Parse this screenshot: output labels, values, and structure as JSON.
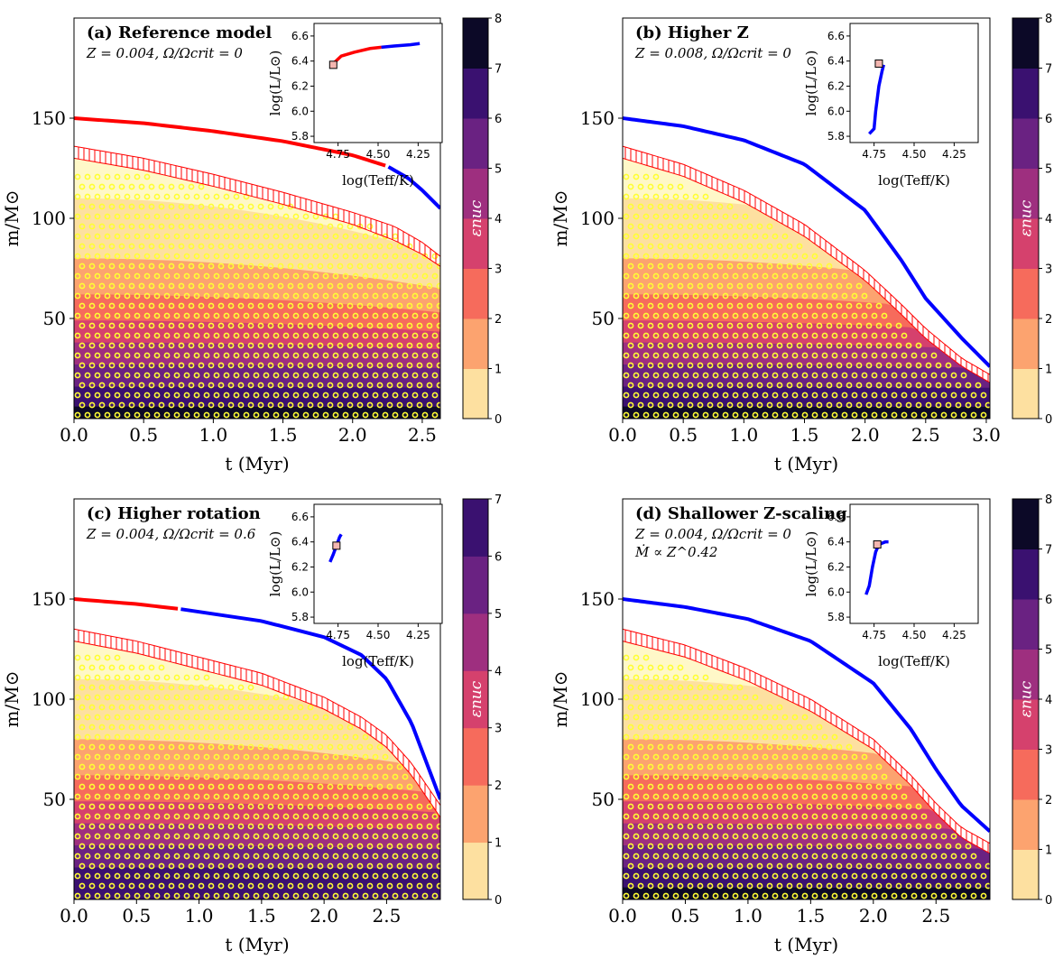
{
  "colors": {
    "radiative_wind": "#ff0000",
    "ce_wind": "#0000ff",
    "hatch": "#ff0000",
    "dots": "#ffff33",
    "marker_fill": "#f4b6b0",
    "cmap": [
      "#fde0a0",
      "#fca36f",
      "#f66b5c",
      "#d5416d",
      "#9e2f7f",
      "#6a2282",
      "#3a1170",
      "#0c0927"
    ]
  },
  "chart_data": [
    {
      "type": "kippenhahn",
      "panel": "a",
      "title": "(a) Reference model",
      "subtitle": "Z = 0.004, Ω/Ωcrit = 0",
      "subtitle2": "",
      "xlabel": "t (Myr)",
      "ylabel": "m/M⊙",
      "xlim": [
        0,
        2.63
      ],
      "ylim": [
        0,
        200
      ],
      "xticks": [
        "0.0",
        "0.5",
        "1.0",
        "1.5",
        "2.0",
        "2.5"
      ],
      "yticks": [
        "50",
        "100",
        "150"
      ],
      "mass_curve": [
        [
          0,
          150
        ],
        [
          0.5,
          147.5
        ],
        [
          1.0,
          143.5
        ],
        [
          1.5,
          138.5
        ],
        [
          2.0,
          131.5
        ],
        [
          2.25,
          126
        ],
        [
          2.4,
          120
        ],
        [
          2.5,
          114
        ],
        [
          2.63,
          105
        ]
      ],
      "red_until": 2.25,
      "hatch_top": [
        [
          0,
          136
        ],
        [
          0.5,
          130
        ],
        [
          1.0,
          122
        ],
        [
          1.5,
          113
        ],
        [
          2.0,
          103
        ],
        [
          2.3,
          96
        ],
        [
          2.5,
          88
        ],
        [
          2.63,
          81
        ]
      ],
      "hatch_bottom": [
        [
          0,
          130
        ],
        [
          0.5,
          124
        ],
        [
          1.0,
          116
        ],
        [
          1.5,
          107
        ],
        [
          2.0,
          97
        ],
        [
          2.3,
          89
        ],
        [
          2.5,
          82
        ],
        [
          2.63,
          76
        ]
      ],
      "dot_top": [
        [
          0,
          126
        ],
        [
          0.6,
          120
        ],
        [
          1.2,
          112
        ],
        [
          1.8,
          103
        ],
        [
          2.3,
          93
        ],
        [
          2.63,
          80
        ]
      ],
      "contours": [
        [
          0,
          110
        ],
        [
          0,
          80
        ],
        [
          0,
          62
        ],
        [
          0,
          49
        ],
        [
          0,
          38
        ],
        [
          0,
          27
        ],
        [
          0,
          16
        ],
        [
          0,
          6
        ]
      ],
      "colorbar": {
        "label": "εnuc",
        "ticks": [
          "0",
          "1",
          "2",
          "3",
          "4",
          "5",
          "6",
          "7",
          "8"
        ]
      },
      "inset": {
        "xlabel": "log(Teff/K)",
        "ylabel": "log(L/L⊙)",
        "xticks": [
          "4.75",
          "4.50",
          "4.25"
        ],
        "yticks": [
          "5.8",
          "6.0",
          "6.2",
          "6.4",
          "6.6"
        ],
        "xlim": [
          4.9,
          4.1
        ],
        "ylim": [
          5.75,
          6.7
        ],
        "red_track": [
          [
            4.78,
            6.38
          ],
          [
            4.73,
            6.44
          ],
          [
            4.65,
            6.47
          ],
          [
            4.55,
            6.5
          ],
          [
            4.48,
            6.51
          ]
        ],
        "blue_track": [
          [
            4.48,
            6.51
          ],
          [
            4.4,
            6.52
          ],
          [
            4.3,
            6.53
          ],
          [
            4.24,
            6.54
          ]
        ],
        "start": [
          4.78,
          6.37
        ]
      }
    },
    {
      "type": "kippenhahn",
      "panel": "b",
      "title": "(b) Higher Z",
      "subtitle": "Z = 0.008, Ω/Ωcrit = 0",
      "subtitle2": "",
      "xlabel": "t (Myr)",
      "ylabel": "m/M⊙",
      "xlim": [
        0,
        3.03
      ],
      "ylim": [
        0,
        200
      ],
      "xticks": [
        "0.0",
        "0.5",
        "1.0",
        "1.5",
        "2.0",
        "2.5",
        "3.0"
      ],
      "yticks": [
        "50",
        "100",
        "150"
      ],
      "mass_curve": [
        [
          0,
          150
        ],
        [
          0.5,
          146
        ],
        [
          1.0,
          139
        ],
        [
          1.5,
          127
        ],
        [
          2.0,
          104
        ],
        [
          2.3,
          79
        ],
        [
          2.5,
          60
        ],
        [
          2.8,
          40
        ],
        [
          3.03,
          26
        ]
      ],
      "red_until": 0,
      "hatch_top": [
        [
          0,
          136
        ],
        [
          0.5,
          127
        ],
        [
          1.0,
          114
        ],
        [
          1.5,
          97
        ],
        [
          2.0,
          74
        ],
        [
          2.3,
          57
        ],
        [
          2.5,
          45
        ],
        [
          2.8,
          30
        ],
        [
          3.03,
          22
        ]
      ],
      "hatch_bottom": [
        [
          0,
          130
        ],
        [
          0.5,
          121
        ],
        [
          1.0,
          108
        ],
        [
          1.5,
          91
        ],
        [
          2.0,
          69
        ],
        [
          2.3,
          52
        ],
        [
          2.5,
          40
        ],
        [
          2.8,
          26
        ],
        [
          3.03,
          18
        ]
      ],
      "dot_top": [
        [
          0,
          126
        ],
        [
          0.5,
          117
        ],
        [
          1.0,
          104
        ],
        [
          1.5,
          87
        ],
        [
          2.0,
          64
        ],
        [
          2.5,
          36
        ],
        [
          3.03,
          14
        ]
      ],
      "contours": [
        [
          0,
          110
        ],
        [
          0,
          80
        ],
        [
          0,
          62
        ],
        [
          0,
          49
        ],
        [
          0,
          38
        ],
        [
          0,
          27
        ],
        [
          0,
          16
        ],
        [
          0,
          6
        ]
      ],
      "colorbar": {
        "label": "εnuc",
        "ticks": [
          "0",
          "1",
          "2",
          "3",
          "4",
          "5",
          "6",
          "7",
          "8"
        ]
      },
      "inset": {
        "xlabel": "log(Teff/K)",
        "ylabel": "log(L/L⊙)",
        "xticks": [
          "4.75",
          "4.50",
          "4.25"
        ],
        "yticks": [
          "5.8",
          "6.0",
          "6.2",
          "6.4",
          "6.6"
        ],
        "xlim": [
          4.9,
          4.1
        ],
        "ylim": [
          5.75,
          6.7
        ],
        "red_track": [],
        "blue_track": [
          [
            4.78,
            5.82
          ],
          [
            4.75,
            5.86
          ],
          [
            4.74,
            6.0
          ],
          [
            4.72,
            6.2
          ],
          [
            4.7,
            6.32
          ],
          [
            4.69,
            6.37
          ]
        ],
        "start": [
          4.72,
          6.38
        ]
      }
    },
    {
      "type": "kippenhahn",
      "panel": "c",
      "title": "(c) Higher rotation",
      "subtitle": "Z = 0.004, Ω/Ωcrit = 0.6",
      "subtitle2": "",
      "xlabel": "t (Myr)",
      "ylabel": "m/M⊙",
      "xlim": [
        0,
        2.93
      ],
      "ylim": [
        0,
        200
      ],
      "xticks": [
        "0.0",
        "0.5",
        "1.0",
        "1.5",
        "2.0",
        "2.5"
      ],
      "yticks": [
        "50",
        "100",
        "150"
      ],
      "mass_curve": [
        [
          0,
          150
        ],
        [
          0.5,
          147.5
        ],
        [
          0.85,
          145
        ],
        [
          1.5,
          139
        ],
        [
          2.0,
          131
        ],
        [
          2.3,
          122
        ],
        [
          2.5,
          110
        ],
        [
          2.7,
          88
        ],
        [
          2.93,
          50
        ]
      ],
      "red_until": 0.85,
      "hatch_top": [
        [
          0,
          135
        ],
        [
          0.5,
          129
        ],
        [
          1.0,
          121
        ],
        [
          1.5,
          113
        ],
        [
          2.0,
          101
        ],
        [
          2.3,
          91
        ],
        [
          2.5,
          82
        ],
        [
          2.7,
          68
        ],
        [
          2.93,
          47
        ]
      ],
      "hatch_bottom": [
        [
          0,
          129
        ],
        [
          0.5,
          123
        ],
        [
          1.0,
          115
        ],
        [
          1.5,
          107
        ],
        [
          2.0,
          95
        ],
        [
          2.3,
          85
        ],
        [
          2.5,
          76
        ],
        [
          2.7,
          62
        ],
        [
          2.93,
          41
        ]
      ],
      "dot_top": [
        [
          0,
          125
        ],
        [
          0.6,
          118
        ],
        [
          1.2,
          110
        ],
        [
          1.8,
          99
        ],
        [
          2.3,
          85
        ],
        [
          2.7,
          62
        ],
        [
          2.93,
          37
        ]
      ],
      "contours": [
        [
          0,
          110
        ],
        [
          0,
          80
        ],
        [
          0,
          62
        ],
        [
          0,
          49
        ],
        [
          0,
          38
        ],
        [
          0,
          27
        ],
        [
          0,
          16
        ]
      ],
      "colorbar": {
        "label": "εnuc",
        "ticks": [
          "0",
          "1",
          "2",
          "3",
          "4",
          "5",
          "6",
          "7"
        ]
      },
      "inset": {
        "xlabel": "log(Teff/K)",
        "ylabel": "log(L/L⊙)",
        "xticks": [
          "4.75",
          "4.50",
          "4.25"
        ],
        "yticks": [
          "5.8",
          "6.0",
          "6.2",
          "6.4",
          "6.6"
        ],
        "xlim": [
          4.9,
          4.1
        ],
        "ylim": [
          5.75,
          6.7
        ],
        "red_track": [],
        "blue_track": [
          [
            4.8,
            6.24
          ],
          [
            4.78,
            6.3
          ],
          [
            4.76,
            6.37
          ],
          [
            4.74,
            6.44
          ],
          [
            4.73,
            6.46
          ]
        ],
        "start": [
          4.76,
          6.37
        ]
      }
    },
    {
      "type": "kippenhahn",
      "panel": "d",
      "title": "(d) Shallower Z-scaling",
      "subtitle": "Z = 0.004, Ω/Ωcrit = 0",
      "subtitle2": "Ṁ ∝ Z^0.42",
      "xlabel": "t (Myr)",
      "ylabel": "m/M⊙",
      "xlim": [
        0,
        2.93
      ],
      "ylim": [
        0,
        200
      ],
      "xticks": [
        "0.0",
        "0.5",
        "1.0",
        "1.5",
        "2.0",
        "2.5"
      ],
      "yticks": [
        "50",
        "100",
        "150"
      ],
      "mass_curve": [
        [
          0,
          150
        ],
        [
          0.5,
          146
        ],
        [
          1.0,
          140
        ],
        [
          1.5,
          129
        ],
        [
          2.0,
          108
        ],
        [
          2.3,
          85
        ],
        [
          2.5,
          65
        ],
        [
          2.7,
          47
        ],
        [
          2.93,
          34
        ]
      ],
      "red_until": 0,
      "hatch_top": [
        [
          0,
          135
        ],
        [
          0.5,
          127
        ],
        [
          1.0,
          115
        ],
        [
          1.5,
          100
        ],
        [
          2.0,
          80
        ],
        [
          2.3,
          62
        ],
        [
          2.5,
          48
        ],
        [
          2.7,
          36
        ],
        [
          2.93,
          28
        ]
      ],
      "hatch_bottom": [
        [
          0,
          129
        ],
        [
          0.5,
          121
        ],
        [
          1.0,
          109
        ],
        [
          1.5,
          94
        ],
        [
          2.0,
          75
        ],
        [
          2.3,
          57
        ],
        [
          2.5,
          43
        ],
        [
          2.7,
          31
        ],
        [
          2.93,
          23
        ]
      ],
      "dot_top": [
        [
          0,
          125
        ],
        [
          0.5,
          116
        ],
        [
          1.0,
          105
        ],
        [
          1.5,
          90
        ],
        [
          2.0,
          70
        ],
        [
          2.5,
          40
        ],
        [
          2.93,
          18
        ]
      ],
      "contours": [
        [
          0,
          110
        ],
        [
          0,
          80
        ],
        [
          0,
          62
        ],
        [
          0,
          49
        ],
        [
          0,
          38
        ],
        [
          0,
          27
        ],
        [
          0,
          16
        ],
        [
          0,
          6
        ]
      ],
      "colorbar": {
        "label": "εnuc",
        "ticks": [
          "0",
          "1",
          "2",
          "3",
          "4",
          "5",
          "6",
          "7",
          "8"
        ]
      },
      "inset": {
        "xlabel": "log(Teff/K)",
        "ylabel": "log(L/L⊙)",
        "xticks": [
          "4.75",
          "4.50",
          "4.25"
        ],
        "yticks": [
          "5.8",
          "6.0",
          "6.2",
          "6.4",
          "6.6"
        ],
        "xlim": [
          4.9,
          4.1
        ],
        "ylim": [
          5.75,
          6.7
        ],
        "red_track": [],
        "blue_track": [
          [
            4.8,
            5.98
          ],
          [
            4.78,
            6.05
          ],
          [
            4.76,
            6.2
          ],
          [
            4.74,
            6.32
          ],
          [
            4.72,
            6.38
          ],
          [
            4.68,
            6.4
          ],
          [
            4.66,
            6.4
          ]
        ],
        "start": [
          4.73,
          6.38
        ]
      }
    }
  ]
}
